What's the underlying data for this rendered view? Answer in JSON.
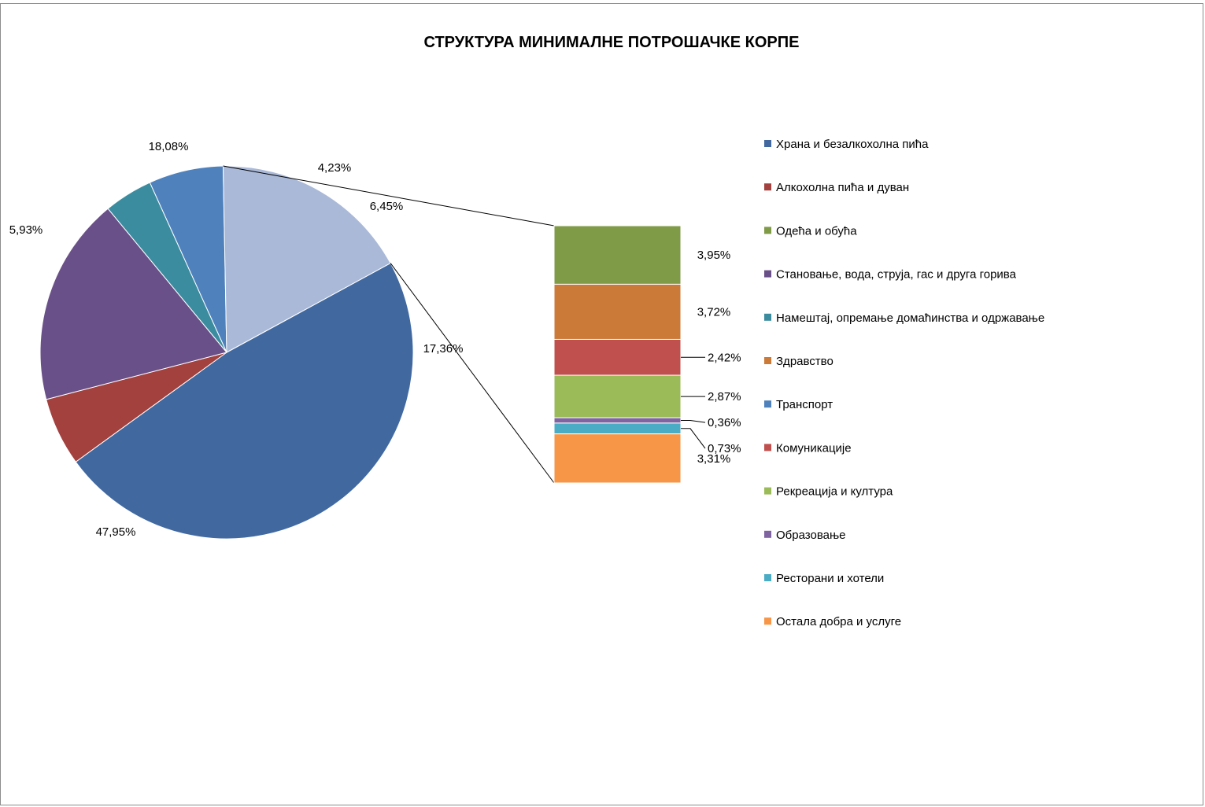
{
  "chart_data": {
    "type": "pie",
    "subtype": "pie-of-bar",
    "title": "СТРУКТУРА МИНИМАЛНЕ ПОТРОШАЧКЕ КОРПЕ",
    "legend_position": "right",
    "categories": [
      "Храна и безалкохолна пића",
      "Алкохолна пића и дуван",
      "Одећа и обућа",
      "Становање, вода, струја, гас и друга горива",
      "Намештај, опремање домаћинства и одржавање",
      "Здравство",
      "Транспорт",
      "Комуникације",
      "Рекреација и култура",
      "Образовање",
      "Ресторани и хотели",
      "Остала добра и услуге"
    ],
    "colors": [
      "#4169A0",
      "#A2413E",
      "#809B48",
      "#6A5088",
      "#3C8CA0",
      "#CC7A38",
      "#4F81BD",
      "#C0504D",
      "#9BBB59",
      "#8064A2",
      "#4BACC6",
      "#F79646"
    ],
    "values": [
      47.95,
      5.93,
      3.95,
      18.08,
      4.23,
      3.72,
      6.45,
      2.42,
      2.87,
      0.36,
      0.73,
      3.31
    ],
    "pie_slices": [
      {
        "category_index": 0,
        "value": 47.95,
        "label": "47,95%"
      },
      {
        "category_index": 1,
        "value": 5.93,
        "label": "5,93%"
      },
      {
        "category_index": 3,
        "value": 18.08,
        "label": "18,08%"
      },
      {
        "category_index": 4,
        "value": 4.23,
        "label": "4,23%"
      },
      {
        "category_index": 6,
        "value": 6.45,
        "label": "6,45%"
      },
      {
        "category_index": -1,
        "value": 17.36,
        "label": "17,36%",
        "color": "#AAB9D8"
      }
    ],
    "bar_stack": [
      {
        "category_index": 2,
        "value": 3.95,
        "label": "3,95%"
      },
      {
        "category_index": 5,
        "value": 3.72,
        "label": "3,72%"
      },
      {
        "category_index": 7,
        "value": 2.42,
        "label": "2,42%"
      },
      {
        "category_index": 8,
        "value": 2.87,
        "label": "2,87%"
      },
      {
        "category_index": 9,
        "value": 0.36,
        "label": "0,36%"
      },
      {
        "category_index": 10,
        "value": 0.73,
        "label": "0,73%"
      },
      {
        "category_index": 11,
        "value": 3.31,
        "label": "3,31%"
      }
    ]
  }
}
